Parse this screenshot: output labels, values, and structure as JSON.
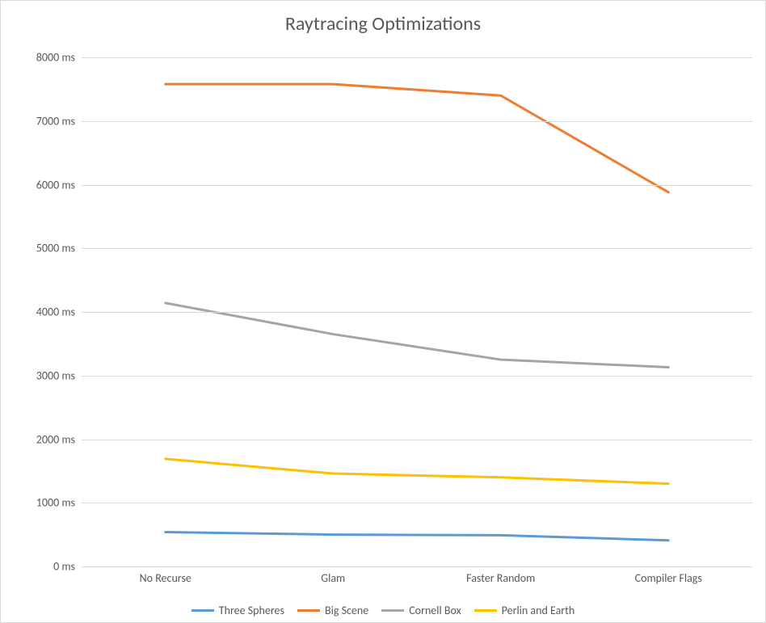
{
  "chart": {
    "type": "line",
    "title": "Raytracing Optimizations",
    "title_fontsize": 24,
    "title_color": "#595959",
    "background_color": "#ffffff",
    "plot_border_color": "#d9d9d9",
    "grid_color": "#d9d9d9",
    "tick_fontsize": 14,
    "tick_color": "#595959",
    "line_width": 3,
    "xlim": [
      0,
      3
    ],
    "ylim": [
      0,
      8000
    ],
    "ytick_step": 1000,
    "ytick_suffix": " ms",
    "categories": [
      "No Recurse",
      "Glam",
      "Faster Random",
      "Compiler Flags"
    ],
    "series": [
      {
        "name": "Three Spheres",
        "color": "#5b9bd5",
        "values": [
          540,
          500,
          490,
          410
        ]
      },
      {
        "name": "Big Scene",
        "color": "#ed7d31",
        "values": [
          7580,
          7580,
          7400,
          5880
        ]
      },
      {
        "name": "Cornell Box",
        "color": "#a5a5a5",
        "values": [
          4140,
          3650,
          3250,
          3130
        ]
      },
      {
        "name": "Perlin and Earth",
        "color": "#ffc000",
        "values": [
          1690,
          1460,
          1400,
          1300
        ]
      }
    ],
    "legend_fontsize": 14,
    "legend_color": "#595959"
  }
}
